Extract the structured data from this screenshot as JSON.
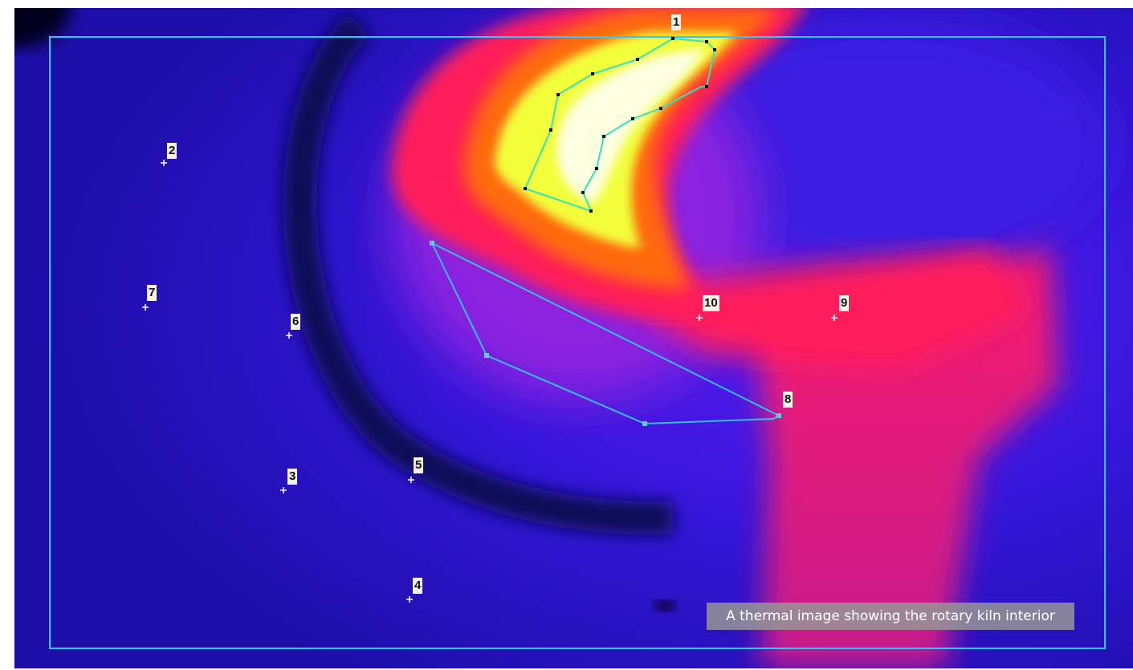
{
  "caption": "A thermal image showing the rotary kiln interior",
  "colors": {
    "background_blue": "#2a12c8",
    "kiln_ring_dark": "#0c0a55",
    "hot_red": "#ff1a5a",
    "hot_orange": "#ff6a10",
    "hot_yellow": "#f2ff3a",
    "hot_white": "#ffffff",
    "frame_outline": "#2ac8ff",
    "polygon_outline": "#33c0e8"
  },
  "measurement_points": [
    {
      "label": "1"
    },
    {
      "label": "2"
    },
    {
      "label": "3"
    },
    {
      "label": "4"
    },
    {
      "label": "5"
    },
    {
      "label": "6"
    },
    {
      "label": "7"
    },
    {
      "label": "8"
    },
    {
      "label": "9"
    },
    {
      "label": "10"
    }
  ]
}
